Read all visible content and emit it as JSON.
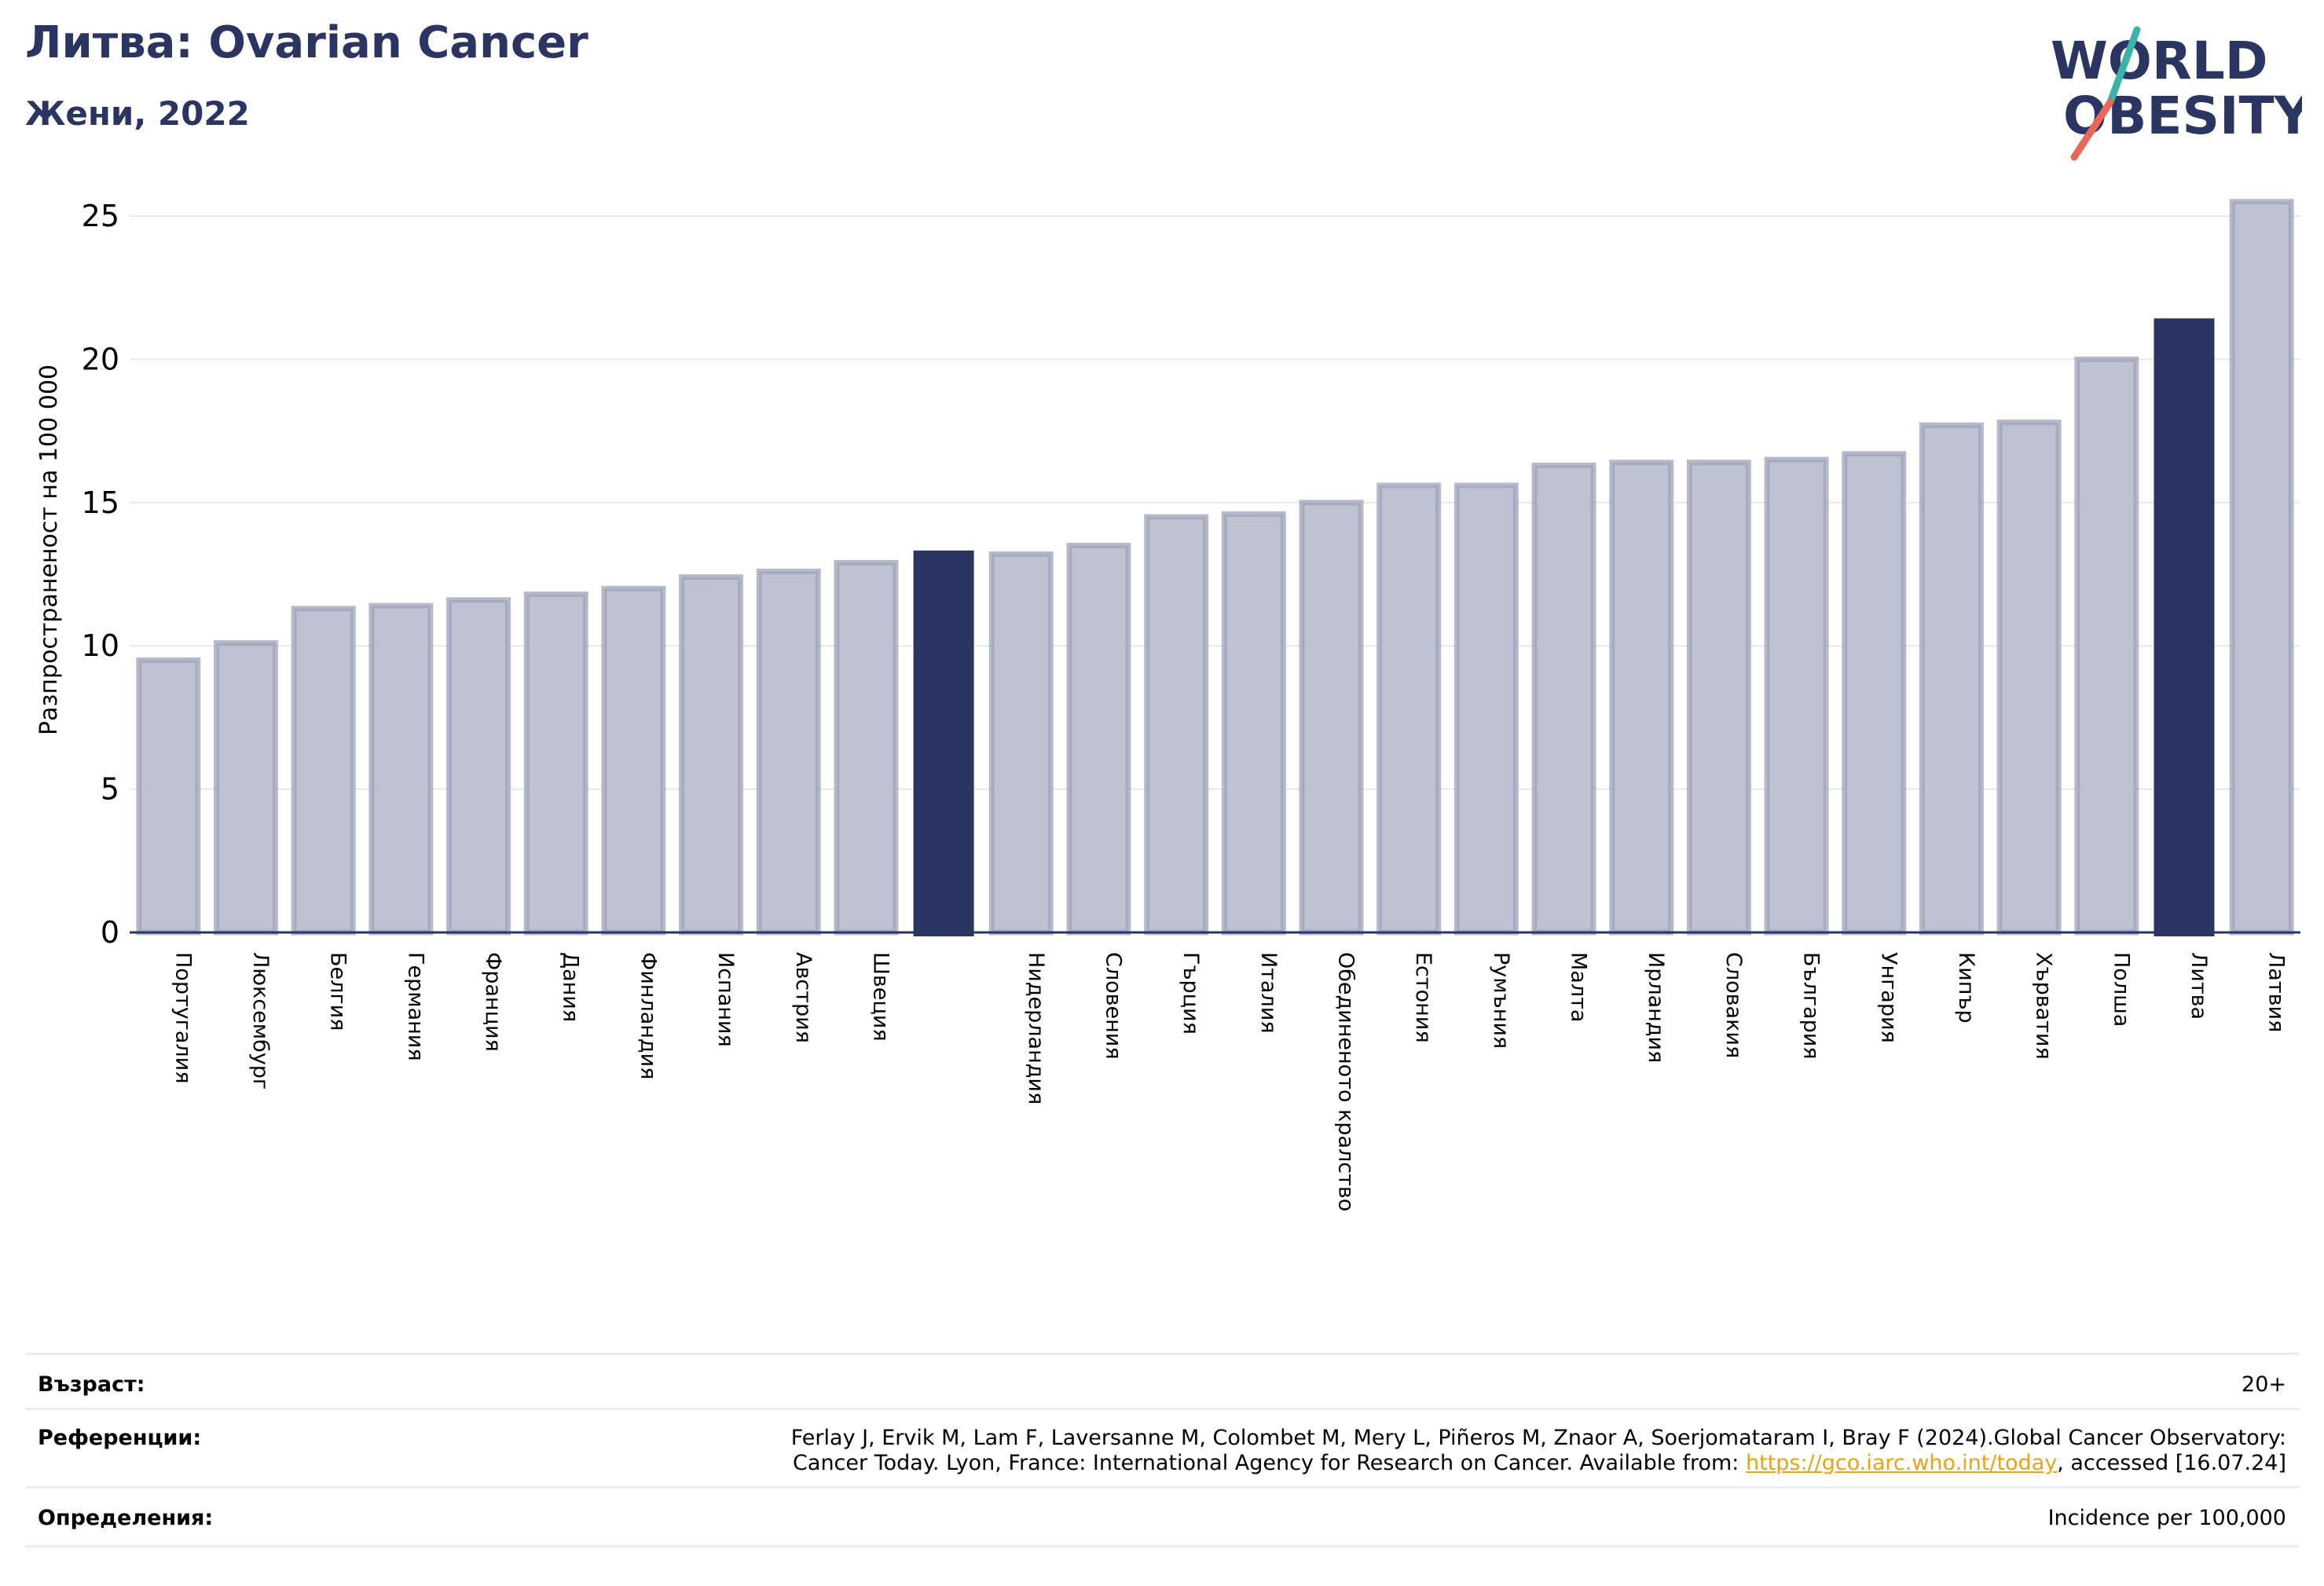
{
  "header": {
    "title": "Литва: Ovarian Cancer",
    "subtitle": "Жени, 2022"
  },
  "logo": {
    "line1": "WORLD",
    "line2": "OBESITY",
    "colors": {
      "text": "#2b3561",
      "teal": "#3bb3a8",
      "red": "#e8675a"
    }
  },
  "chart_data": {
    "type": "bar",
    "ylabel": "Разпространеност  на 100 000",
    "ylim": [
      0,
      26
    ],
    "yticks": [
      0,
      5,
      10,
      15,
      20,
      25
    ],
    "grid": true,
    "categories": [
      "Португалия",
      "Люксембург",
      "Белгия",
      "Германия",
      "Франция",
      "Дания",
      "Финландия",
      "Испания",
      "Австрия",
      "Швеция",
      "",
      "Нидерландия",
      "Словения",
      "Гърция",
      "Италия",
      "Обединеното кралство",
      "Естония",
      "Румъния",
      "Малта",
      "Ирландия",
      "Словакия",
      "България",
      "Унгария",
      "Кипър",
      "Хърватия",
      "Полша",
      "Литва",
      "Латвия"
    ],
    "values": [
      9.5,
      10.1,
      11.3,
      11.4,
      11.6,
      11.8,
      12.0,
      12.4,
      12.6,
      12.9,
      13.3,
      13.2,
      13.5,
      14.5,
      14.6,
      15.0,
      15.6,
      15.6,
      16.3,
      16.4,
      16.4,
      16.5,
      16.7,
      17.7,
      17.8,
      20.0,
      21.4,
      25.5
    ],
    "highlight": [
      10,
      26
    ],
    "colors": {
      "bar": "#bfc2d0",
      "bar_edge": "#9ea3ba",
      "highlight": "#2b3561",
      "grid": "#e6e8ee",
      "axis": "#2b3561"
    }
  },
  "info": {
    "age_label": "Възраст:",
    "age_value": "20+",
    "references_label": "Референции:",
    "references_line1": "Ferlay J, Ervik M, Lam F, Laversanne M, Colombet M, Mery L, Piñeros M, Znaor A, Soerjomataram I, Bray F (2024).Global Cancer Observatory:",
    "references_line2_pre": "Cancer Today. Lyon, France: International Agency for Research on Cancer. Available from: ",
    "references_link": "https://gco.iarc.who.int/today",
    "references_line2_post": ", accessed [16.07.24]",
    "definitions_label": "Определения:",
    "definitions_value": "Incidence per 100,000"
  }
}
